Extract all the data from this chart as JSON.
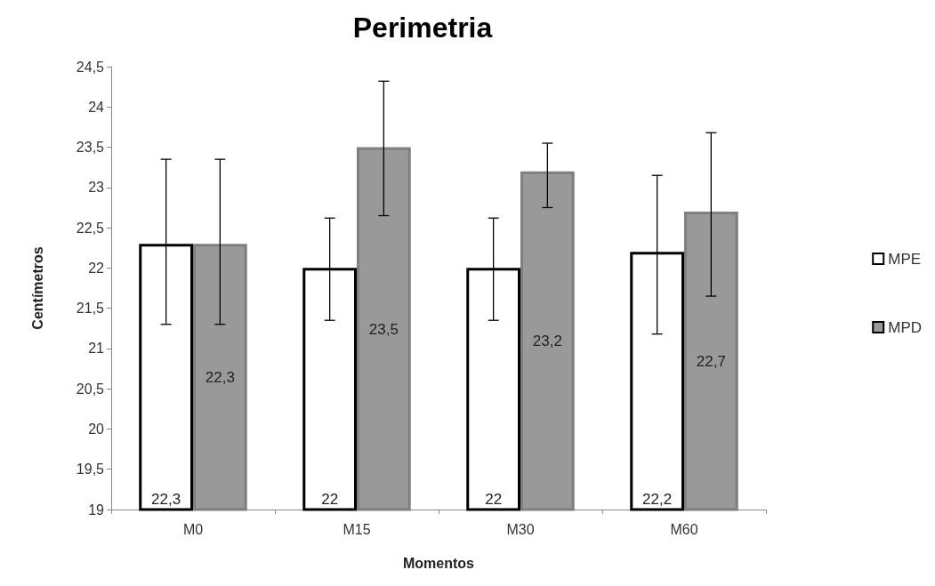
{
  "chart_data": {
    "type": "bar",
    "title": "Perimetria",
    "xlabel": "Momentos",
    "ylabel": "Centímetros",
    "categories": [
      "M0",
      "M15",
      "M30",
      "M60"
    ],
    "series": [
      {
        "name": "MPE",
        "color": "#ffffff",
        "values": [
          22.3,
          22,
          22,
          22.2
        ],
        "value_labels": [
          "22,3",
          "22",
          "22",
          "22,2"
        ],
        "errors": [
          [
            21.3,
            23.35
          ],
          [
            21.35,
            22.62
          ],
          [
            21.35,
            22.62
          ],
          [
            21.18,
            23.15
          ]
        ]
      },
      {
        "name": "MPD",
        "color": "#999999",
        "values": [
          22.3,
          23.5,
          23.2,
          22.7
        ],
        "value_labels": [
          "22,3",
          "23,5",
          "23,2",
          "22,7"
        ],
        "errors": [
          [
            21.3,
            23.35
          ],
          [
            22.65,
            24.32
          ],
          [
            22.75,
            23.55
          ],
          [
            21.65,
            23.68
          ]
        ]
      }
    ],
    "ylim": [
      19,
      24.5
    ],
    "yticks": [
      19,
      {
        "value": 19.5,
        "label": "19,5"
      },
      20,
      {
        "value": 20.5,
        "label": "20,5"
      },
      21,
      {
        "value": 21.5,
        "label": "21,5"
      },
      22,
      {
        "value": 22.5,
        "label": "22,5"
      },
      23,
      {
        "value": 23.5,
        "label": "23,5"
      },
      24,
      {
        "value": 24.5,
        "label": "24,5"
      }
    ],
    "grid": false,
    "legend": "right"
  }
}
